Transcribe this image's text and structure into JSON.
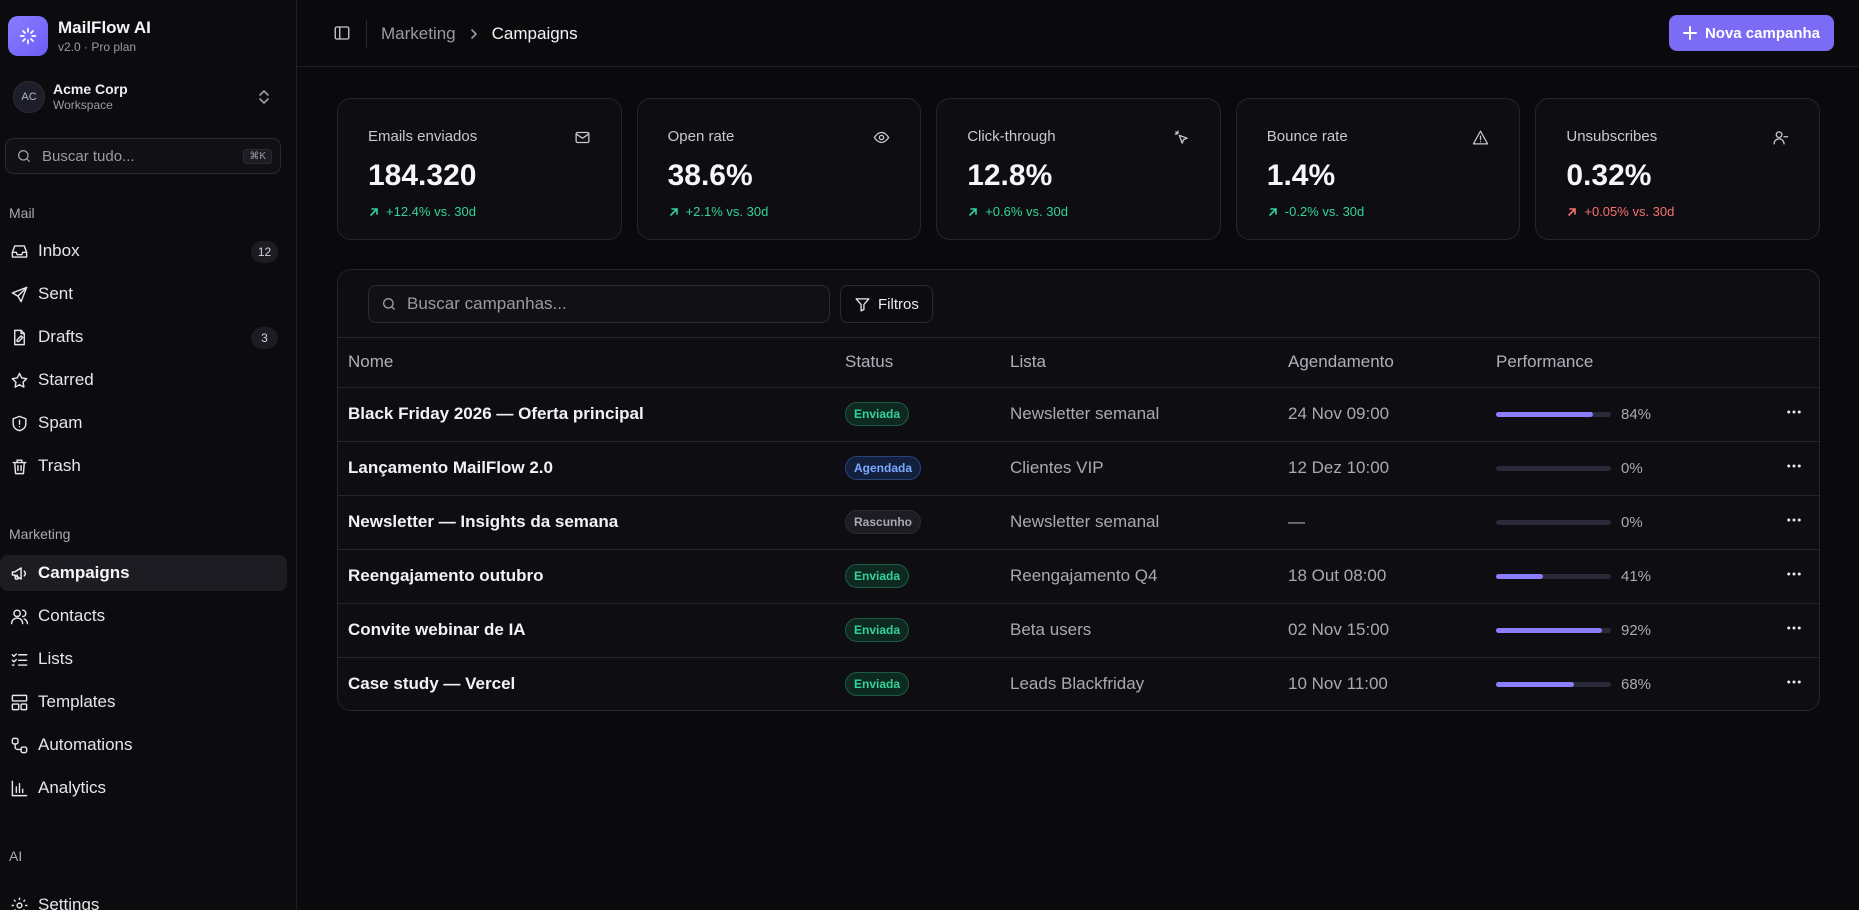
{
  "brand": {
    "name": "MailFlow AI",
    "sub": "v2.0 · Pro plan"
  },
  "workspace": {
    "initials": "AC",
    "name": "Acme Corp",
    "sub": "Workspace"
  },
  "sidebar_search": {
    "placeholder": "Buscar tudo...",
    "shortcut": "⌘K"
  },
  "sections": {
    "mail": "Mail",
    "marketing": "Marketing",
    "ai": "AI"
  },
  "nav_mail": [
    {
      "label": "Inbox",
      "icon": "inbox-icon",
      "count": "12"
    },
    {
      "label": "Sent",
      "icon": "send-icon"
    },
    {
      "label": "Drafts",
      "icon": "draft-icon",
      "count": "3"
    },
    {
      "label": "Starred",
      "icon": "star-icon"
    },
    {
      "label": "Spam",
      "icon": "shield-icon"
    },
    {
      "label": "Trash",
      "icon": "trash-icon"
    }
  ],
  "nav_marketing": [
    {
      "label": "Campaigns",
      "icon": "megaphone-icon",
      "active": true
    },
    {
      "label": "Contacts",
      "icon": "users-icon"
    },
    {
      "label": "Lists",
      "icon": "list-icon"
    },
    {
      "label": "Templates",
      "icon": "template-icon"
    },
    {
      "label": "Automations",
      "icon": "workflow-icon"
    },
    {
      "label": "Analytics",
      "icon": "chart-icon"
    }
  ],
  "nav_ai": [
    {
      "label": "Settings",
      "icon": "gear-icon"
    }
  ],
  "header": {
    "breadcrumb_parent": "Marketing",
    "breadcrumb_current": "Campaigns",
    "new_button": "Nova campanha"
  },
  "stats": [
    {
      "title": "Emails enviados",
      "value": "184.320",
      "delta": "+12.4% vs. 30d",
      "trend": "pos",
      "icon": "mail-icon"
    },
    {
      "title": "Open rate",
      "value": "38.6%",
      "delta": "+2.1% vs. 30d",
      "trend": "pos",
      "icon": "eye-icon"
    },
    {
      "title": "Click-through",
      "value": "12.8%",
      "delta": "+0.6% vs. 30d",
      "trend": "pos",
      "icon": "pointer-click-icon"
    },
    {
      "title": "Bounce rate",
      "value": "1.4%",
      "delta": "-0.2% vs. 30d",
      "trend": "pos",
      "icon": "warning-icon"
    },
    {
      "title": "Unsubscribes",
      "value": "0.32%",
      "delta": "+0.05% vs. 30d",
      "trend": "neg",
      "icon": "user-minus-icon"
    }
  ],
  "table": {
    "search_placeholder": "Buscar campanhas...",
    "filter_label": "Filtros",
    "columns": [
      "Nome",
      "Status",
      "Lista",
      "Agendamento",
      "Performance"
    ],
    "rows": [
      {
        "name": "Black Friday 2026 — Oferta principal",
        "status": "Enviada",
        "status_kind": "sent",
        "list": "Newsletter semanal",
        "schedule": "24 Nov 09:00",
        "performance": 84,
        "performance_label": "84%"
      },
      {
        "name": "Lançamento MailFlow 2.0",
        "status": "Agendada",
        "status_kind": "sched",
        "list": "Clientes VIP",
        "schedule": "12 Dez 10:00",
        "performance": 0,
        "performance_label": "0%"
      },
      {
        "name": "Newsletter — Insights da semana",
        "status": "Rascunho",
        "status_kind": "draft",
        "list": "Newsletter semanal",
        "schedule": "—",
        "performance": 0,
        "performance_label": "0%"
      },
      {
        "name": "Reengajamento outubro",
        "status": "Enviada",
        "status_kind": "sent",
        "list": "Reengajamento Q4",
        "schedule": "18 Out 08:00",
        "performance": 41,
        "performance_label": "41%"
      },
      {
        "name": "Convite webinar de IA",
        "status": "Enviada",
        "status_kind": "sent",
        "list": "Beta users",
        "schedule": "02 Nov 15:00",
        "performance": 92,
        "performance_label": "92%"
      },
      {
        "name": "Case study — Vercel",
        "status": "Enviada",
        "status_kind": "sent",
        "list": "Leads Blackfriday",
        "schedule": "10 Nov 11:00",
        "performance": 68,
        "performance_label": "68%"
      }
    ]
  },
  "colors": {
    "accent": "#7c6cf5",
    "positive": "#34d399",
    "negative": "#f87171"
  }
}
